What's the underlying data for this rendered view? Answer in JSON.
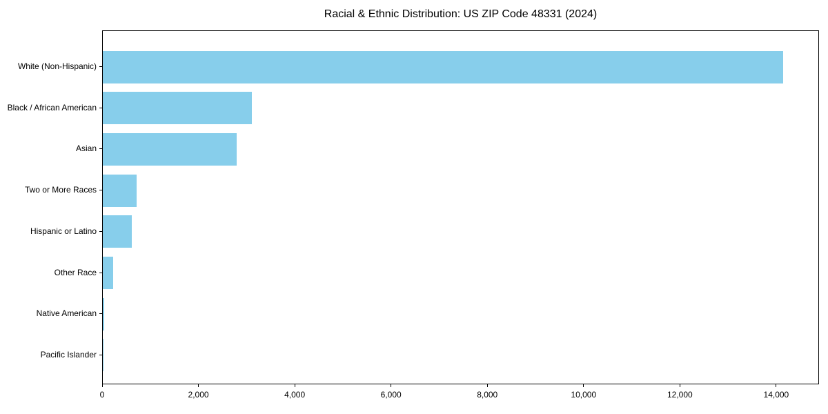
{
  "chart_data": {
    "type": "bar",
    "orientation": "horizontal",
    "title": "Racial & Ethnic Distribution: US ZIP Code 48331 (2024)",
    "categories": [
      "White (Non-Hispanic)",
      "Black / African American",
      "Asian",
      "Two or More Races",
      "Hispanic or Latino",
      "Other Race",
      "Native American",
      "Pacific Islander"
    ],
    "values": [
      14160,
      3100,
      2790,
      710,
      600,
      210,
      25,
      8
    ],
    "xlabel": "",
    "ylabel": "",
    "xlim": [
      0,
      14890
    ],
    "x_tick_values": [
      0,
      2000,
      4000,
      6000,
      8000,
      10000,
      12000,
      14000
    ],
    "x_tick_labels": [
      "0",
      "2,000",
      "4,000",
      "6,000",
      "8,000",
      "10,000",
      "12,000",
      "14,000"
    ],
    "bar_color": "#87CEEB",
    "grid": false,
    "legend": "none"
  }
}
